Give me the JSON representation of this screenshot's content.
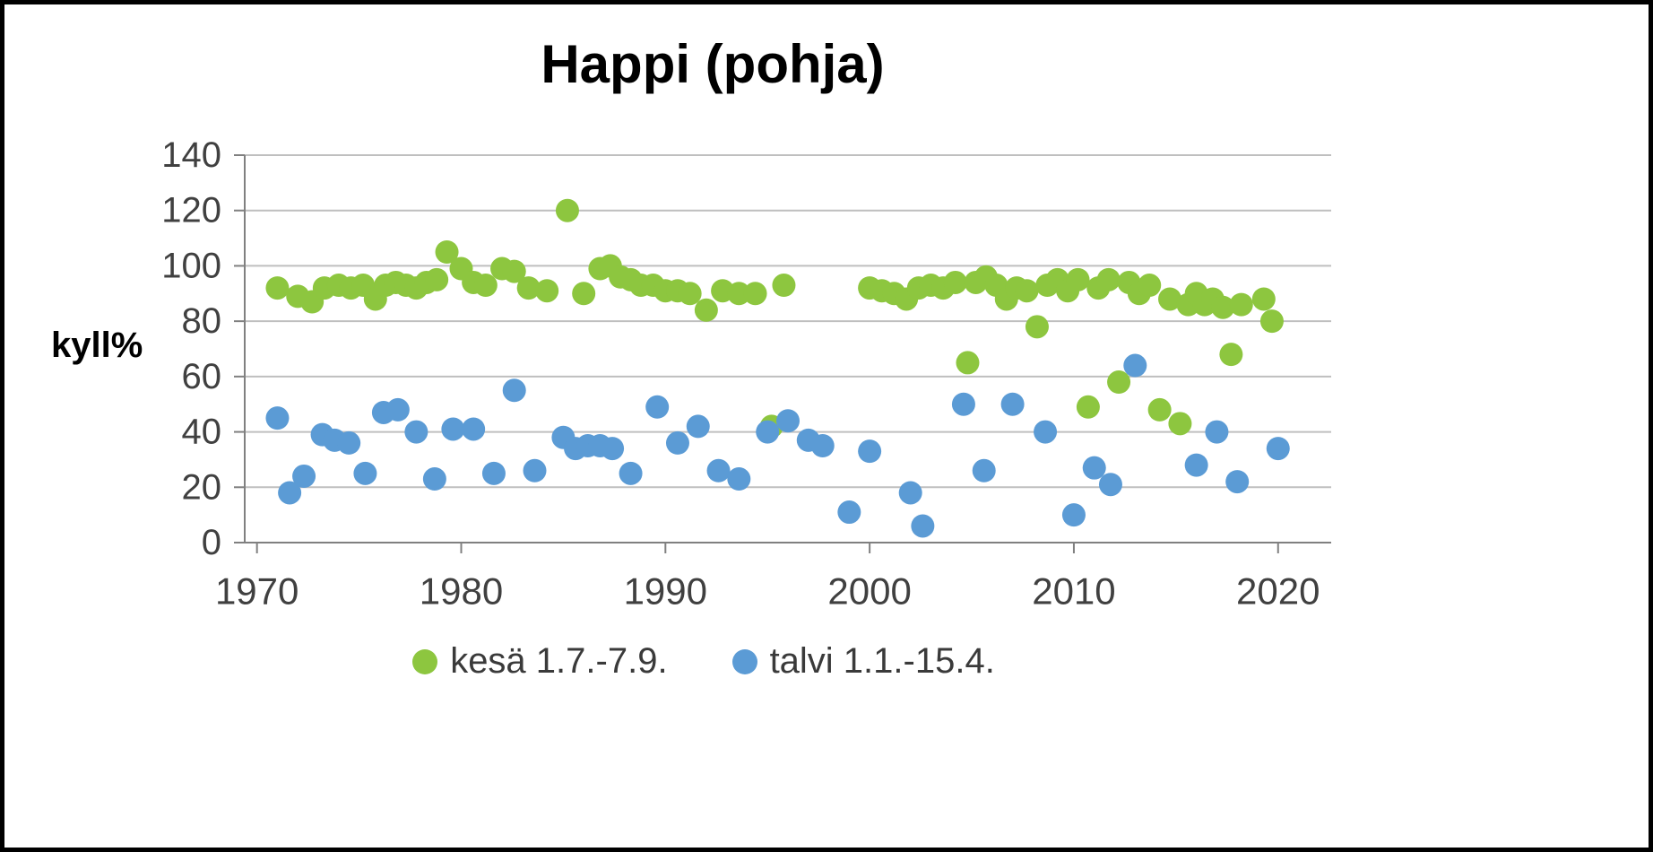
{
  "colors": {
    "background": "#ffffff",
    "frame_border": "#000000",
    "gridline": "#bfbfbf",
    "axis": "#808080",
    "tick_label": "#404040",
    "title": "#000000",
    "summer_green": "#8dc63f",
    "winter_blue": "#5b9bd5"
  },
  "chart_data": {
    "type": "scatter",
    "title": "Happi (pohja)",
    "ylabel": "kyll%",
    "xlabel": "",
    "xlim": [
      1969.4,
      2022.6
    ],
    "ylim": [
      0,
      140
    ],
    "x_ticks": [
      1970,
      1980,
      1990,
      2000,
      2010,
      2020
    ],
    "y_ticks": [
      0,
      20,
      40,
      60,
      80,
      100,
      120,
      140
    ],
    "grid": "horizontal",
    "legend_position": "bottom",
    "series": [
      {
        "name": "kesä 1.7.-7.9.",
        "color": "#8dc63f",
        "points": [
          [
            1971,
            92
          ],
          [
            1972,
            89
          ],
          [
            1972.7,
            87
          ],
          [
            1973.3,
            92
          ],
          [
            1974,
            93
          ],
          [
            1974.6,
            92
          ],
          [
            1975.2,
            93
          ],
          [
            1975.8,
            88
          ],
          [
            1976.3,
            93
          ],
          [
            1976.8,
            94
          ],
          [
            1977.3,
            93
          ],
          [
            1977.8,
            92
          ],
          [
            1978.3,
            94
          ],
          [
            1978.8,
            95
          ],
          [
            1979.3,
            105
          ],
          [
            1980,
            99
          ],
          [
            1980.6,
            94
          ],
          [
            1981.2,
            93
          ],
          [
            1982,
            99
          ],
          [
            1982.6,
            98
          ],
          [
            1983.3,
            92
          ],
          [
            1984.2,
            91
          ],
          [
            1985.2,
            120
          ],
          [
            1986,
            90
          ],
          [
            1986.8,
            99
          ],
          [
            1987.3,
            100
          ],
          [
            1987.8,
            96
          ],
          [
            1988.3,
            95
          ],
          [
            1988.8,
            93
          ],
          [
            1989.4,
            93
          ],
          [
            1990,
            91
          ],
          [
            1990.6,
            91
          ],
          [
            1991.2,
            90
          ],
          [
            1992,
            84
          ],
          [
            1992.8,
            91
          ],
          [
            1993.6,
            90
          ],
          [
            1994.4,
            90
          ],
          [
            1995.2,
            42
          ],
          [
            1995.8,
            93
          ],
          [
            2000,
            92
          ],
          [
            2000.6,
            91
          ],
          [
            2001.2,
            90
          ],
          [
            2001.8,
            88
          ],
          [
            2002.4,
            92
          ],
          [
            2003,
            93
          ],
          [
            2003.6,
            92
          ],
          [
            2004.2,
            94
          ],
          [
            2004.8,
            65
          ],
          [
            2005.2,
            94
          ],
          [
            2005.7,
            96
          ],
          [
            2006.2,
            93
          ],
          [
            2006.7,
            88
          ],
          [
            2007.2,
            92
          ],
          [
            2007.7,
            91
          ],
          [
            2008.2,
            78
          ],
          [
            2008.7,
            93
          ],
          [
            2009.2,
            95
          ],
          [
            2009.7,
            91
          ],
          [
            2010.2,
            95
          ],
          [
            2010.7,
            49
          ],
          [
            2011.2,
            92
          ],
          [
            2011.7,
            95
          ],
          [
            2012.2,
            58
          ],
          [
            2012.7,
            94
          ],
          [
            2013.2,
            90
          ],
          [
            2013.7,
            93
          ],
          [
            2014.2,
            48
          ],
          [
            2014.7,
            88
          ],
          [
            2015.2,
            43
          ],
          [
            2015.6,
            86
          ],
          [
            2016,
            90
          ],
          [
            2016.4,
            86
          ],
          [
            2016.8,
            88
          ],
          [
            2017.3,
            85
          ],
          [
            2017.7,
            68
          ],
          [
            2018.2,
            86
          ],
          [
            2019.3,
            88
          ],
          [
            2019.7,
            80
          ]
        ]
      },
      {
        "name": "talvi 1.1.-15.4.",
        "color": "#5b9bd5",
        "points": [
          [
            1971,
            45
          ],
          [
            1971.6,
            18
          ],
          [
            1972.3,
            24
          ],
          [
            1973.2,
            39
          ],
          [
            1973.8,
            37
          ],
          [
            1974.5,
            36
          ],
          [
            1975.3,
            25
          ],
          [
            1976.2,
            47
          ],
          [
            1976.9,
            48
          ],
          [
            1977.8,
            40
          ],
          [
            1978.7,
            23
          ],
          [
            1979.6,
            41
          ],
          [
            1980.6,
            41
          ],
          [
            1981.6,
            25
          ],
          [
            1982.6,
            55
          ],
          [
            1983.6,
            26
          ],
          [
            1985,
            38
          ],
          [
            1985.6,
            34
          ],
          [
            1986.2,
            35
          ],
          [
            1986.8,
            35
          ],
          [
            1987.4,
            34
          ],
          [
            1988.3,
            25
          ],
          [
            1989.6,
            49
          ],
          [
            1990.6,
            36
          ],
          [
            1991.6,
            42
          ],
          [
            1992.6,
            26
          ],
          [
            1993.6,
            23
          ],
          [
            1995,
            40
          ],
          [
            1996,
            44
          ],
          [
            1997,
            37
          ],
          [
            1997.7,
            35
          ],
          [
            1999,
            11
          ],
          [
            2000,
            33
          ],
          [
            2002,
            18
          ],
          [
            2002.6,
            6
          ],
          [
            2004.6,
            50
          ],
          [
            2005.6,
            26
          ],
          [
            2007,
            50
          ],
          [
            2008.6,
            40
          ],
          [
            2010,
            10
          ],
          [
            2011,
            27
          ],
          [
            2011.8,
            21
          ],
          [
            2013,
            64
          ],
          [
            2016,
            28
          ],
          [
            2017,
            40
          ],
          [
            2018,
            22
          ],
          [
            2020,
            34
          ]
        ]
      }
    ]
  }
}
